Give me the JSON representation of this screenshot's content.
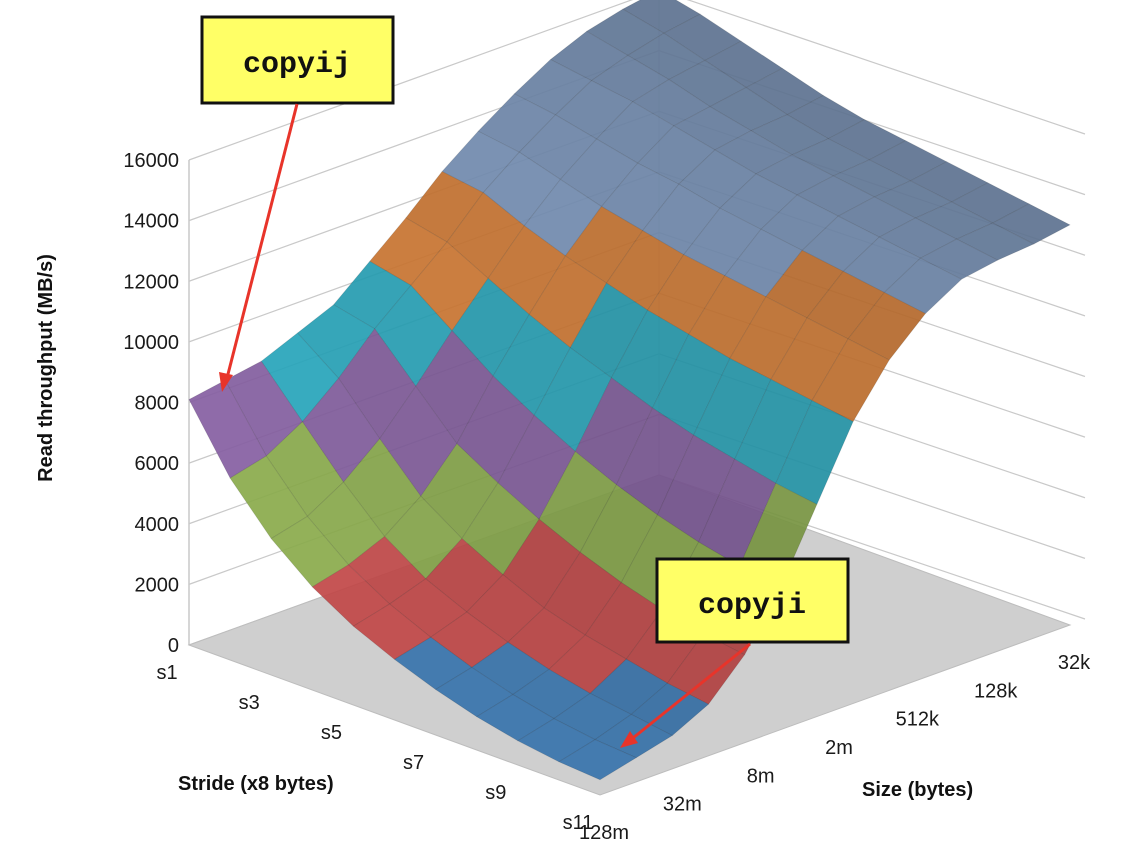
{
  "chart_data": {
    "type": "surface",
    "ylabel": "Read throughput (MB/s)",
    "stride_label": "Stride (x8 bytes)",
    "size_label": "Size (bytes)",
    "zlim": [
      0,
      16000
    ],
    "z_ticks": [
      "0",
      "2000",
      "4000",
      "6000",
      "8000",
      "10000",
      "12000",
      "14000",
      "16000"
    ],
    "stride_ticks": [
      "s1",
      "s3",
      "s5",
      "s7",
      "s9",
      "s11"
    ],
    "size_ticks": [
      "128m",
      "32m",
      "8m",
      "2m",
      "512k",
      "128k",
      "32k"
    ],
    "band_colors": [
      "#3b78b3",
      "#c94a4a",
      "#8fb24e",
      "#8b63a8",
      "#2ab4cc",
      "#f08b3a",
      "#8fb0dd"
    ],
    "surface": {
      "strides": [
        "s1",
        "s2",
        "s3",
        "s4",
        "s5",
        "s6",
        "s7",
        "s8",
        "s9",
        "s10",
        "s11"
      ],
      "sizes": [
        "128m",
        "64m",
        "32m",
        "16m",
        "8m",
        "4m",
        "2m",
        "1m",
        "512k",
        "256k",
        "128k",
        "64k",
        "32k",
        "16k"
      ],
      "values_mbs": [
        [
          8100,
          8300,
          8500,
          9000,
          9500,
          10500,
          11500,
          12600,
          13500,
          14300,
          15000,
          15500,
          15800,
          16000
        ],
        [
          6000,
          6300,
          7000,
          8000,
          9200,
          10200,
          11200,
          12400,
          13300,
          14100,
          14800,
          15200,
          15500,
          15700
        ],
        [
          4500,
          4800,
          5500,
          6500,
          7800,
          9200,
          10500,
          11800,
          12900,
          13800,
          14600,
          14900,
          15100,
          15300
        ],
        [
          3400,
          3700,
          4200,
          5100,
          6400,
          8200,
          9800,
          11300,
          12500,
          13500,
          14300,
          14500,
          14700,
          14900
        ],
        [
          2600,
          2900,
          3300,
          4200,
          5600,
          7400,
          9200,
          10900,
          12200,
          13300,
          14000,
          14200,
          14300,
          14500
        ],
        [
          2000,
          2300,
          2700,
          3500,
          4900,
          6700,
          8700,
          10500,
          11900,
          13000,
          13700,
          13900,
          14000,
          14200
        ],
        [
          1500,
          1800,
          2200,
          2900,
          4300,
          6100,
          8200,
          10200,
          11700,
          12800,
          13500,
          13700,
          13800,
          14000
        ],
        [
          1100,
          1400,
          1800,
          2500,
          3800,
          5600,
          7800,
          9900,
          11500,
          12600,
          13300,
          13500,
          13600,
          13800
        ],
        [
          800,
          1100,
          1500,
          2200,
          3400,
          5200,
          7500,
          9700,
          11300,
          12400,
          13100,
          13300,
          13400,
          13600
        ],
        [
          600,
          900,
          1300,
          1900,
          3100,
          4900,
          7200,
          9500,
          11100,
          12200,
          12900,
          13100,
          13200,
          13400
        ],
        [
          500,
          800,
          1100,
          1700,
          2900,
          4700,
          7000,
          9300,
          10900,
          12000,
          12700,
          12900,
          13000,
          13200
        ]
      ]
    }
  },
  "callouts": {
    "copyij": "copyij",
    "copyji": "copyji"
  }
}
